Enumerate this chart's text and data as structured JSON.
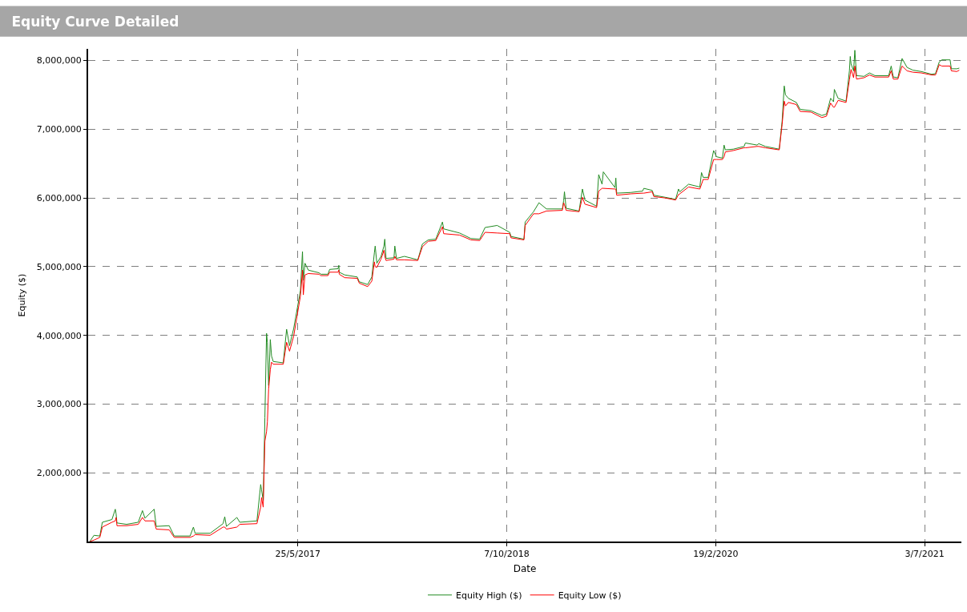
{
  "chart_data": {
    "type": "line",
    "title": "Equity Curve Detailed",
    "xlabel": "Date",
    "ylabel": "Equity ($)",
    "x": [
      "2016-01-13",
      "2016-01-23",
      "2016-02-06",
      "2016-02-12",
      "2016-03-06",
      "2016-03-14",
      "2016-03-16",
      "2016-03-18",
      "2016-04-10",
      "2016-05-08",
      "2016-05-18",
      "2016-05-24",
      "2016-06-15",
      "2016-06-20",
      "2016-07-21",
      "2016-08-02",
      "2016-09-09",
      "2016-09-17",
      "2016-09-21",
      "2016-10-27",
      "2016-11-27",
      "2016-12-01",
      "2016-12-05",
      "2016-12-30",
      "2017-01-06",
      "2017-02-16",
      "2017-02-25",
      "2017-02-27",
      "2017-03-03",
      "2017-03-07",
      "2017-03-11",
      "2017-03-13",
      "2017-03-16",
      "2017-03-20",
      "2017-03-23",
      "2017-03-27",
      "2017-04-20",
      "2017-04-28",
      "2017-05-05",
      "2017-05-15",
      "2017-05-31",
      "2017-06-05",
      "2017-06-07",
      "2017-06-11",
      "2017-06-19",
      "2017-07-15",
      "2017-07-19",
      "2017-08-05",
      "2017-08-09",
      "2017-08-29",
      "2017-08-31",
      "2017-09-01",
      "2017-09-14",
      "2017-10-14",
      "2017-10-19",
      "2017-11-08",
      "2017-11-18",
      "2017-11-24",
      "2017-11-26",
      "2017-11-30",
      "2017-12-10",
      "2017-12-17",
      "2017-12-19",
      "2017-12-22",
      "2018-01-10",
      "2018-01-12",
      "2018-01-16",
      "2018-02-04",
      "2018-03-08",
      "2018-03-19",
      "2018-04-02",
      "2018-04-20",
      "2018-05-06",
      "2018-05-09",
      "2018-06-16",
      "2018-07-13",
      "2018-08-03",
      "2018-08-16",
      "2018-09-14",
      "2018-10-14",
      "2018-10-17",
      "2018-11-17",
      "2018-11-20",
      "2018-12-10",
      "2018-12-23",
      "2019-01-10",
      "2019-02-17",
      "2019-02-20",
      "2019-02-22",
      "2019-02-26",
      "2019-03-29",
      "2019-04-06",
      "2019-04-12",
      "2019-05-10",
      "2019-05-15",
      "2019-05-23",
      "2019-05-26",
      "2019-06-23",
      "2019-06-25",
      "2019-06-27",
      "2019-07-31",
      "2019-08-28",
      "2019-08-31",
      "2019-09-20",
      "2019-09-24",
      "2019-10-21",
      "2019-11-15",
      "2019-11-22",
      "2019-11-25",
      "2019-12-16",
      "2020-01-12",
      "2020-01-16",
      "2020-01-20",
      "2020-02-01",
      "2020-02-14",
      "2020-02-21",
      "2020-03-06",
      "2020-03-10",
      "2020-03-13",
      "2020-04-01",
      "2020-04-27",
      "2020-04-30",
      "2020-05-28",
      "2020-06-01",
      "2020-06-17",
      "2020-07-20",
      "2020-07-27",
      "2020-08-01",
      "2020-08-04",
      "2020-08-11",
      "2020-08-30",
      "2020-09-08",
      "2020-10-04",
      "2020-10-30",
      "2020-11-10",
      "2020-11-20",
      "2020-11-27",
      "2020-11-29",
      "2020-12-08",
      "2020-12-27",
      "2021-01-04",
      "2021-01-06",
      "2021-01-08",
      "2021-01-14",
      "2021-01-17",
      "2021-01-21",
      "2021-02-08",
      "2021-02-21",
      "2021-03-06",
      "2021-04-08",
      "2021-04-14",
      "2021-04-19",
      "2021-04-30",
      "2021-05-10",
      "2021-05-22",
      "2021-06-05",
      "2021-06-25",
      "2021-07-20",
      "2021-07-29",
      "2021-08-07",
      "2021-08-13",
      "2021-09-02",
      "2021-09-05",
      "2021-09-18",
      "2021-09-24"
    ],
    "series": [
      {
        "name": "Equity High ($)",
        "color": "#228b22",
        "values": [
          1000000,
          1090000,
          1080000,
          1280000,
          1320000,
          1470000,
          1400000,
          1270000,
          1250000,
          1280000,
          1450000,
          1340000,
          1470000,
          1220000,
          1230000,
          1080000,
          1080000,
          1210000,
          1120000,
          1120000,
          1260000,
          1360000,
          1220000,
          1350000,
          1280000,
          1300000,
          1830000,
          1750000,
          1600000,
          2800000,
          4030000,
          3900000,
          3270000,
          3940000,
          3700000,
          3620000,
          3600000,
          4090000,
          3850000,
          4100000,
          4650000,
          5220000,
          4800000,
          5050000,
          4950000,
          4910000,
          4890000,
          4890000,
          4960000,
          4970000,
          5020000,
          4920000,
          4880000,
          4850000,
          4780000,
          4740000,
          4850000,
          5200000,
          5300000,
          5050000,
          5150000,
          5300000,
          5400000,
          5120000,
          5130000,
          5300000,
          5120000,
          5150000,
          5100000,
          5330000,
          5390000,
          5400000,
          5650000,
          5550000,
          5490000,
          5410000,
          5400000,
          5570000,
          5600000,
          5500000,
          5440000,
          5400000,
          5650000,
          5800000,
          5930000,
          5840000,
          5840000,
          5960000,
          6090000,
          5850000,
          5810000,
          6130000,
          5970000,
          5880000,
          6340000,
          6200000,
          6380000,
          6150000,
          6290000,
          6070000,
          6080000,
          6100000,
          6140000,
          6110000,
          6040000,
          6010000,
          5980000,
          6130000,
          6090000,
          6200000,
          6160000,
          6370000,
          6300000,
          6300000,
          6690000,
          6600000,
          6580000,
          6770000,
          6700000,
          6710000,
          6750000,
          6800000,
          6770000,
          6790000,
          6750000,
          6710000,
          7120000,
          7630000,
          7500000,
          7450000,
          7390000,
          7290000,
          7270000,
          7200000,
          7220000,
          7450000,
          7400000,
          7580000,
          7450000,
          7410000,
          7850000,
          8060000,
          7950000,
          7850000,
          8150000,
          7780000,
          7770000,
          7820000,
          7780000,
          7780000,
          7920000,
          7760000,
          7750000,
          8030000,
          7900000,
          7860000,
          7840000,
          7800000,
          7810000,
          7980000,
          8010000,
          8010000,
          7880000,
          7880000,
          7890000
        ]
      },
      {
        "name": "Equity Low ($)",
        "color": "#ff0000",
        "values": [
          1000000,
          1020000,
          1060000,
          1210000,
          1280000,
          1300000,
          1350000,
          1230000,
          1230000,
          1250000,
          1350000,
          1300000,
          1300000,
          1180000,
          1170000,
          1060000,
          1060000,
          1080000,
          1100000,
          1090000,
          1210000,
          1210000,
          1180000,
          1210000,
          1250000,
          1260000,
          1500000,
          1640000,
          1500000,
          2460000,
          2600000,
          2740000,
          3220000,
          3500000,
          3610000,
          3580000,
          3580000,
          3900000,
          3770000,
          3990000,
          4570000,
          4950000,
          4590000,
          4880000,
          4900000,
          4890000,
          4870000,
          4870000,
          4920000,
          4920000,
          4950000,
          4890000,
          4840000,
          4830000,
          4760000,
          4710000,
          4790000,
          5070000,
          5000000,
          4990000,
          5110000,
          5240000,
          5150000,
          5090000,
          5110000,
          5150000,
          5100000,
          5100000,
          5090000,
          5290000,
          5370000,
          5380000,
          5580000,
          5480000,
          5460000,
          5390000,
          5380000,
          5500000,
          5490000,
          5480000,
          5420000,
          5390000,
          5600000,
          5770000,
          5770000,
          5810000,
          5820000,
          5930000,
          5900000,
          5820000,
          5800000,
          6010000,
          5910000,
          5860000,
          6100000,
          6140000,
          6140000,
          6130000,
          6130000,
          6040000,
          6060000,
          6070000,
          6070000,
          6090000,
          6020000,
          6000000,
          5970000,
          6050000,
          6060000,
          6160000,
          6130000,
          6200000,
          6270000,
          6270000,
          6560000,
          6560000,
          6560000,
          6600000,
          6670000,
          6690000,
          6730000,
          6730000,
          6750000,
          6750000,
          6730000,
          6700000,
          7070000,
          7410000,
          7340000,
          7390000,
          7360000,
          7260000,
          7250000,
          7170000,
          7190000,
          7380000,
          7320000,
          7320000,
          7420000,
          7390000,
          7720000,
          7800000,
          7870000,
          7750000,
          7920000,
          7730000,
          7750000,
          7790000,
          7760000,
          7760000,
          7850000,
          7730000,
          7730000,
          7920000,
          7850000,
          7830000,
          7820000,
          7790000,
          7790000,
          7940000,
          7920000,
          7920000,
          7850000,
          7840000,
          7860000
        ]
      }
    ],
    "xlim": [
      "2016-01-09",
      "2021-09-29"
    ],
    "xticks": [
      {
        "value": "2017-05-25",
        "label": "25/5/2017"
      },
      {
        "value": "2018-10-07",
        "label": "7/10/2018"
      },
      {
        "value": "2020-02-19",
        "label": "19/2/2020"
      },
      {
        "value": "2021-07-03",
        "label": "3/7/2021"
      }
    ],
    "ylim": [
      1000000,
      8170000
    ],
    "yticks": [
      {
        "value": 2000000,
        "label": "2,000,000"
      },
      {
        "value": 3000000,
        "label": "3,000,000"
      },
      {
        "value": 4000000,
        "label": "4,000,000"
      },
      {
        "value": 5000000,
        "label": "5,000,000"
      },
      {
        "value": 6000000,
        "label": "6,000,000"
      },
      {
        "value": 7000000,
        "label": "7,000,000"
      },
      {
        "value": 8000000,
        "label": "8,000,000"
      }
    ],
    "grid": true,
    "legend": "bottom",
    "marker": "none",
    "line_style": "solid"
  }
}
